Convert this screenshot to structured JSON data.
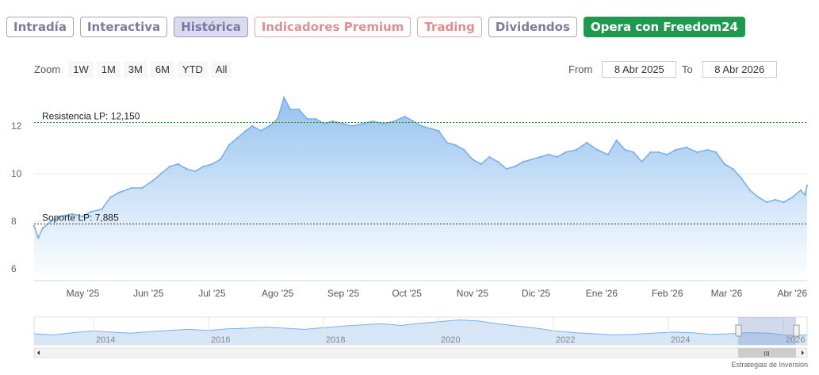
{
  "tabs": [
    {
      "label": "Intradía",
      "state": "normal"
    },
    {
      "label": "Interactiva",
      "state": "normal"
    },
    {
      "label": "Histórica",
      "state": "active"
    },
    {
      "label": "Indicadores Premium",
      "state": "premium"
    },
    {
      "label": "Trading",
      "state": "premium"
    },
    {
      "label": "Dividendos",
      "state": "normal"
    },
    {
      "label": "Opera con Freedom24",
      "state": "cta"
    }
  ],
  "zoom": {
    "label": "Zoom",
    "buttons": [
      "1W",
      "1M",
      "3M",
      "6M",
      "YTD",
      "All"
    ]
  },
  "range": {
    "from_label": "From",
    "from_value": "8 Abr 2025",
    "to_label": "To",
    "to_value": "8 Abr 2026"
  },
  "colors": {
    "line": "#7cb0e8",
    "area_top": "#8fbfee",
    "area_bottom": "#ffffff",
    "support_line": "#333333",
    "resistance_line": "#2e7d32"
  },
  "chart_data": {
    "type": "area",
    "ylim": [
      5.5,
      13.5
    ],
    "y_ticks": [
      6,
      8,
      10,
      12
    ],
    "x_ticks": [
      "May '25",
      "Jun '25",
      "Jul '25",
      "Ago '25",
      "Sep '25",
      "Oct '25",
      "Nov '25",
      "Dic '25",
      "Ene '26",
      "Feb '26",
      "Mar '26",
      "Abr '26"
    ],
    "series": [
      {
        "points": [
          [
            "2025-04-08",
            7.8
          ],
          [
            "2025-04-10",
            7.3
          ],
          [
            "2025-04-12",
            7.7
          ],
          [
            "2025-04-16",
            8.0
          ],
          [
            "2025-04-20",
            8.2
          ],
          [
            "2025-04-26",
            8.3
          ],
          [
            "2025-05-01",
            8.2
          ],
          [
            "2025-05-05",
            8.4
          ],
          [
            "2025-05-10",
            8.5
          ],
          [
            "2025-05-14",
            9.0
          ],
          [
            "2025-05-18",
            9.2
          ],
          [
            "2025-05-24",
            9.4
          ],
          [
            "2025-05-29",
            9.4
          ],
          [
            "2025-06-03",
            9.7
          ],
          [
            "2025-06-07",
            10.0
          ],
          [
            "2025-06-11",
            10.3
          ],
          [
            "2025-06-15",
            10.4
          ],
          [
            "2025-06-19",
            10.2
          ],
          [
            "2025-06-23",
            10.1
          ],
          [
            "2025-06-27",
            10.3
          ],
          [
            "2025-07-01",
            10.4
          ],
          [
            "2025-07-05",
            10.6
          ],
          [
            "2025-07-09",
            11.2
          ],
          [
            "2025-07-13",
            11.5
          ],
          [
            "2025-07-17",
            11.8
          ],
          [
            "2025-07-20",
            12.0
          ],
          [
            "2025-07-24",
            11.8
          ],
          [
            "2025-07-28",
            12.0
          ],
          [
            "2025-08-01",
            12.3
          ],
          [
            "2025-08-04",
            13.2
          ],
          [
            "2025-08-07",
            12.7
          ],
          [
            "2025-08-11",
            12.7
          ],
          [
            "2025-08-15",
            12.3
          ],
          [
            "2025-08-19",
            12.3
          ],
          [
            "2025-08-23",
            12.1
          ],
          [
            "2025-08-27",
            12.2
          ],
          [
            "2025-09-01",
            12.1
          ],
          [
            "2025-09-05",
            12.0
          ],
          [
            "2025-09-10",
            12.1
          ],
          [
            "2025-09-15",
            12.2
          ],
          [
            "2025-09-20",
            12.1
          ],
          [
            "2025-09-25",
            12.2
          ],
          [
            "2025-09-30",
            12.4
          ],
          [
            "2025-10-04",
            12.2
          ],
          [
            "2025-10-08",
            12.0
          ],
          [
            "2025-10-12",
            11.9
          ],
          [
            "2025-10-16",
            11.8
          ],
          [
            "2025-10-20",
            11.3
          ],
          [
            "2025-10-24",
            11.2
          ],
          [
            "2025-10-28",
            11.0
          ],
          [
            "2025-11-01",
            10.6
          ],
          [
            "2025-11-05",
            10.4
          ],
          [
            "2025-11-09",
            10.7
          ],
          [
            "2025-11-13",
            10.5
          ],
          [
            "2025-11-17",
            10.2
          ],
          [
            "2025-11-21",
            10.3
          ],
          [
            "2025-11-25",
            10.5
          ],
          [
            "2025-11-29",
            10.6
          ],
          [
            "2025-12-03",
            10.7
          ],
          [
            "2025-12-07",
            10.8
          ],
          [
            "2025-12-11",
            10.7
          ],
          [
            "2025-12-15",
            10.9
          ],
          [
            "2025-12-20",
            11.0
          ],
          [
            "2025-12-25",
            11.3
          ],
          [
            "2025-12-30",
            11.0
          ],
          [
            "2026-01-04",
            10.8
          ],
          [
            "2026-01-08",
            11.4
          ],
          [
            "2026-01-12",
            11.0
          ],
          [
            "2026-01-16",
            10.9
          ],
          [
            "2026-01-20",
            10.5
          ],
          [
            "2026-01-24",
            10.9
          ],
          [
            "2026-01-28",
            10.9
          ],
          [
            "2026-02-01",
            10.8
          ],
          [
            "2026-02-05",
            11.0
          ],
          [
            "2026-02-10",
            11.1
          ],
          [
            "2026-02-15",
            10.9
          ],
          [
            "2026-02-20",
            11.0
          ],
          [
            "2026-02-24",
            10.9
          ],
          [
            "2026-02-28",
            10.4
          ],
          [
            "2026-03-04",
            10.2
          ],
          [
            "2026-03-08",
            9.8
          ],
          [
            "2026-03-12",
            9.3
          ],
          [
            "2026-03-16",
            9.0
          ],
          [
            "2026-03-20",
            8.8
          ],
          [
            "2026-03-24",
            8.9
          ],
          [
            "2026-03-28",
            8.8
          ],
          [
            "2026-04-01",
            9.0
          ],
          [
            "2026-04-05",
            9.3
          ],
          [
            "2026-04-07",
            9.1
          ],
          [
            "2026-04-08",
            9.5
          ]
        ]
      }
    ],
    "reference_lines": [
      {
        "label": "Resistencia LP: 12,150",
        "value": 12.15,
        "style": "dashed"
      },
      {
        "label": "Soporte LP: 7,885",
        "value": 7.885,
        "style": "dashed"
      }
    ]
  },
  "navigator": {
    "year_labels": [
      "2014",
      "2016",
      "2018",
      "2020",
      "2022",
      "2024",
      "2026"
    ],
    "series": [
      10,
      9.8,
      10.2,
      10.5,
      10.3,
      10.1,
      10.4,
      10.6,
      10.8,
      10.6,
      10.9,
      11.0,
      11.2,
      11.0,
      10.8,
      11.1,
      11.4,
      11.6,
      11.8,
      11.5,
      11.9,
      12.2,
      12.5,
      12.3,
      11.8,
      11.4,
      11.0,
      10.5,
      10.2,
      10.0,
      9.8,
      9.9,
      10.1,
      10.3,
      10.2,
      9.9,
      10.0,
      10.2,
      10.1,
      9.7,
      9.8
    ],
    "scrollbar_grip": "III"
  },
  "watermark": "Estrategias de Inversión"
}
